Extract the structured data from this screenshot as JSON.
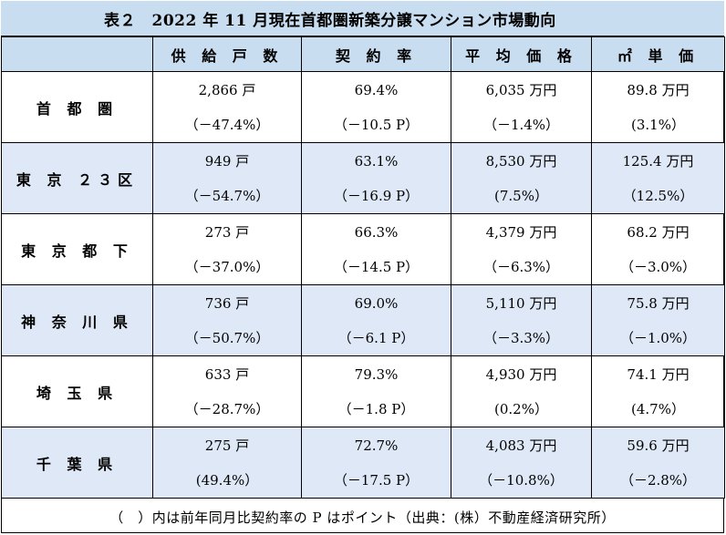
{
  "title": "表２　2022 年 11 月現在首都圏新築分譲マンション市場動向",
  "headers": [
    "",
    "供 給 戸 数",
    "契 約 率",
    "平 均 価 格",
    "㎡ 単 価"
  ],
  "rows": [
    {
      "region": "首 都 圏",
      "supply": "2,866 戸",
      "supply_chg": "（－47.4%）",
      "rate": "69.4%",
      "rate_chg": "（－10.5 P）",
      "price": "6,035 万円",
      "price_chg": "（－1.4%）",
      "unit": "89.8 万円",
      "unit_chg": "(3.1%）"
    },
    {
      "region": "東 京 ２３区",
      "supply": "949 戸",
      "supply_chg": "（－54.7%）",
      "rate": "63.1%",
      "rate_chg": "（－16.9 P）",
      "price": "8,530 万円",
      "price_chg": "(7.5%）",
      "unit": "125.4 万円",
      "unit_chg": "（12.5%）"
    },
    {
      "region": "東 京 都 下",
      "supply": "273 戸",
      "supply_chg": "（－37.0%）",
      "rate": "66.3%",
      "rate_chg": "（－14.5 P）",
      "price": "4,379 万円",
      "price_chg": "（－6.3%）",
      "unit": "68.2 万円",
      "unit_chg": "（－3.0%）"
    },
    {
      "region": "神 奈 川 県",
      "supply": "736 戸",
      "supply_chg": "（－50.7%）",
      "rate": "69.0%",
      "rate_chg": "（－6.1 P）",
      "price": "5,110 万円",
      "price_chg": "（－3.3%）",
      "unit": "75.8 万円",
      "unit_chg": "（－1.0%）"
    },
    {
      "region": "埼 玉 県",
      "supply": "633 戸",
      "supply_chg": "（－28.7%）",
      "rate": "79.3%",
      "rate_chg": "（－1.8 P）",
      "price": "4,930 万円",
      "price_chg": "(0.2%）",
      "unit": "74.1 万円",
      "unit_chg": "(4.7%）"
    },
    {
      "region": "千 葉 県",
      "supply": "275 戸",
      "supply_chg": "(49.4%）",
      "rate": "72.7%",
      "rate_chg": "（－17.5 P）",
      "price": "4,083 万円",
      "price_chg": "（－10.8%）",
      "unit": "59.6 万円",
      "unit_chg": "（－2.8%）"
    }
  ],
  "footnote": "（　）内は前年同月比契約率の P はポイント（出典：(株）不動産経済研究所）"
}
